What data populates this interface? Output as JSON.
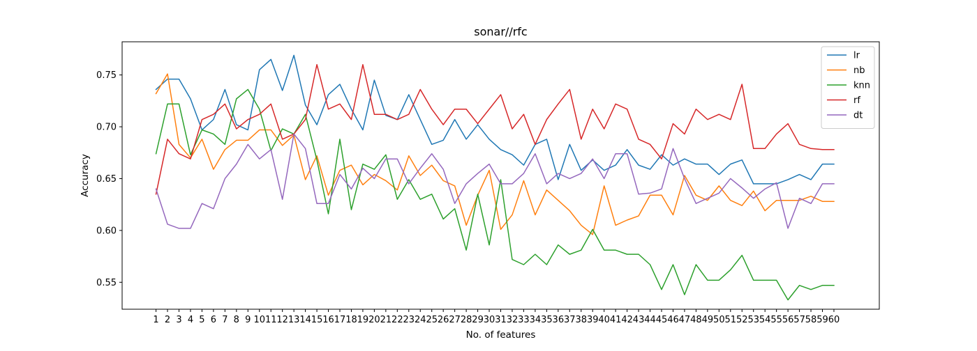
{
  "chart_data": {
    "type": "line",
    "title": "sonar//rfc",
    "xlabel": "No. of features",
    "ylabel": "Accuracy",
    "xlim": [
      -1.95,
      63.95
    ],
    "ylim": [
      0.524,
      0.782
    ],
    "yticks": [
      0.55,
      0.6,
      0.65,
      0.7,
      0.75
    ],
    "x": [
      1,
      2,
      3,
      4,
      5,
      6,
      7,
      8,
      9,
      10,
      11,
      12,
      13,
      14,
      15,
      16,
      17,
      18,
      19,
      20,
      21,
      22,
      23,
      24,
      25,
      26,
      27,
      28,
      29,
      30,
      31,
      32,
      33,
      34,
      35,
      36,
      37,
      38,
      39,
      40,
      41,
      42,
      43,
      44,
      45,
      46,
      47,
      48,
      49,
      50,
      51,
      52,
      53,
      54,
      55,
      56,
      57,
      58,
      59,
      60
    ],
    "legend_position": "top-right",
    "grid": false,
    "series": [
      {
        "name": "lr",
        "color": "#1f77b4",
        "values": [
          0.736,
          0.746,
          0.746,
          0.727,
          0.697,
          0.707,
          0.736,
          0.702,
          0.697,
          0.755,
          0.765,
          0.735,
          0.769,
          0.721,
          0.702,
          0.731,
          0.741,
          0.717,
          0.697,
          0.745,
          0.711,
          0.707,
          0.731,
          0.707,
          0.683,
          0.687,
          0.707,
          0.688,
          0.702,
          0.688,
          0.678,
          0.673,
          0.663,
          0.683,
          0.688,
          0.649,
          0.683,
          0.658,
          0.668,
          0.658,
          0.663,
          0.678,
          0.663,
          0.659,
          0.673,
          0.663,
          0.669,
          0.664,
          0.664,
          0.654,
          0.664,
          0.668,
          0.645,
          0.645,
          0.645,
          0.649,
          0.654,
          0.649,
          0.664,
          0.664
        ]
      },
      {
        "name": "nb",
        "color": "#ff7f0e",
        "values": [
          0.732,
          0.751,
          0.683,
          0.67,
          0.688,
          0.659,
          0.678,
          0.687,
          0.687,
          0.697,
          0.697,
          0.682,
          0.692,
          0.649,
          0.672,
          0.634,
          0.658,
          0.663,
          0.644,
          0.654,
          0.648,
          0.639,
          0.672,
          0.653,
          0.663,
          0.648,
          0.643,
          0.605,
          0.634,
          0.658,
          0.601,
          0.615,
          0.648,
          0.615,
          0.639,
          0.629,
          0.619,
          0.605,
          0.596,
          0.643,
          0.605,
          0.61,
          0.614,
          0.634,
          0.634,
          0.615,
          0.653,
          0.634,
          0.629,
          0.643,
          0.629,
          0.624,
          0.638,
          0.619,
          0.629,
          0.629,
          0.629,
          0.633,
          0.628,
          0.628
        ]
      },
      {
        "name": "knn",
        "color": "#2ca02c",
        "values": [
          0.674,
          0.722,
          0.722,
          0.673,
          0.697,
          0.693,
          0.683,
          0.727,
          0.736,
          0.717,
          0.677,
          0.698,
          0.693,
          0.712,
          0.668,
          0.616,
          0.688,
          0.62,
          0.664,
          0.659,
          0.673,
          0.63,
          0.649,
          0.63,
          0.635,
          0.611,
          0.621,
          0.581,
          0.635,
          0.586,
          0.649,
          0.572,
          0.567,
          0.577,
          0.567,
          0.586,
          0.577,
          0.581,
          0.601,
          0.581,
          0.581,
          0.577,
          0.577,
          0.567,
          0.543,
          0.567,
          0.538,
          0.567,
          0.552,
          0.552,
          0.562,
          0.576,
          0.552,
          0.552,
          0.552,
          0.533,
          0.547,
          0.543,
          0.547,
          0.547
        ]
      },
      {
        "name": "rf",
        "color": "#d62728",
        "values": [
          0.635,
          0.688,
          0.674,
          0.669,
          0.707,
          0.712,
          0.722,
          0.698,
          0.707,
          0.712,
          0.722,
          0.688,
          0.693,
          0.707,
          0.76,
          0.717,
          0.722,
          0.707,
          0.76,
          0.712,
          0.712,
          0.707,
          0.712,
          0.736,
          0.717,
          0.702,
          0.717,
          0.717,
          0.703,
          0.717,
          0.731,
          0.698,
          0.712,
          0.683,
          0.707,
          0.722,
          0.736,
          0.688,
          0.717,
          0.698,
          0.722,
          0.717,
          0.688,
          0.683,
          0.669,
          0.703,
          0.693,
          0.717,
          0.707,
          0.712,
          0.707,
          0.741,
          0.679,
          0.679,
          0.693,
          0.703,
          0.683,
          0.679,
          0.678,
          0.678
        ]
      },
      {
        "name": "dt",
        "color": "#9467bd",
        "values": [
          0.64,
          0.606,
          0.602,
          0.602,
          0.626,
          0.621,
          0.65,
          0.664,
          0.683,
          0.669,
          0.678,
          0.63,
          0.693,
          0.679,
          0.626,
          0.626,
          0.654,
          0.64,
          0.66,
          0.65,
          0.669,
          0.669,
          0.645,
          0.66,
          0.674,
          0.659,
          0.626,
          0.645,
          0.655,
          0.664,
          0.645,
          0.645,
          0.655,
          0.674,
          0.645,
          0.655,
          0.65,
          0.655,
          0.669,
          0.65,
          0.674,
          0.674,
          0.635,
          0.636,
          0.64,
          0.679,
          0.65,
          0.626,
          0.631,
          0.636,
          0.65,
          0.641,
          0.631,
          0.64,
          0.646,
          0.602,
          0.631,
          0.626,
          0.645,
          0.645
        ]
      }
    ]
  }
}
